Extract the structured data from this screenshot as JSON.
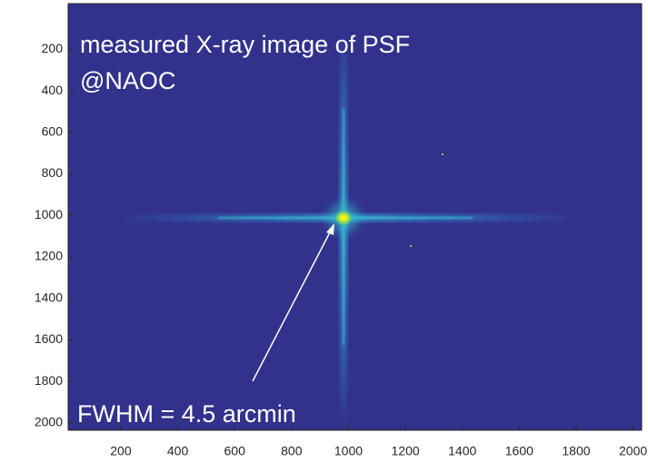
{
  "chart_data": {
    "type": "image",
    "annotations": [
      "measured X-ray image of PSF",
      "@NAOC",
      "FWHM = 4.5 arcmin"
    ],
    "xlim": [
      15,
      2030
    ],
    "ylim": [
      -20,
      2035
    ],
    "xticks": [
      200,
      400,
      600,
      800,
      1000,
      1200,
      1400,
      1600,
      1800,
      2000
    ],
    "yticks": [
      200,
      400,
      600,
      800,
      1000,
      1200,
      1400,
      1600,
      1800,
      2000
    ],
    "y_reversed": true,
    "grid": false,
    "background_color": "#32318c"
  }
}
